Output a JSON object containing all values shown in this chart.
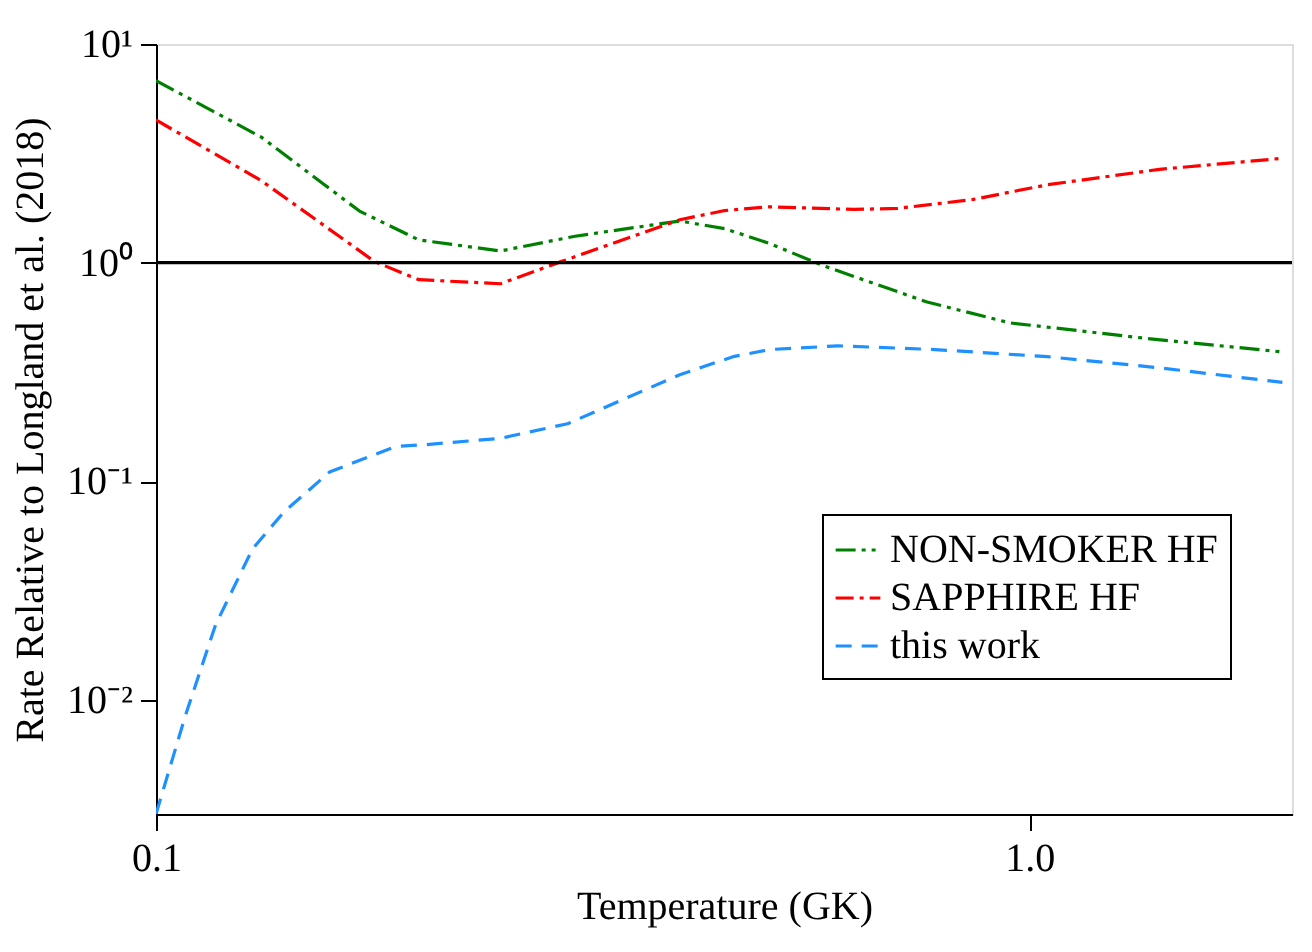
{
  "chart_data": {
    "type": "line",
    "xlabel": "Temperature (GK)",
    "ylabel": "Rate Relative to Longland et al. (2018)",
    "log": "xy",
    "xlim": [
      0.1,
      2
    ],
    "ylim": [
      0.003,
      10
    ],
    "xticks": [
      0.1,
      {
        "value": 1,
        "label": "1.0"
      }
    ],
    "yticks": [
      {
        "value": 0.01,
        "label": "10⁻²"
      },
      {
        "value": 0.1,
        "label": "10⁻¹"
      },
      {
        "value": 1,
        "label": "10⁰"
      },
      {
        "value": 10,
        "label": "10¹"
      }
    ],
    "grid": false,
    "legend": "bottom right",
    "marker": "none",
    "ref_lines": [
      {
        "axis": "y",
        "value": 1,
        "color": "#000000",
        "line_style": "solid"
      }
    ],
    "series": [
      {
        "name": "NON-SMOKER HF",
        "color": "#008000",
        "line_style": "dashdotdot",
        "x": [
          0.1,
          0.132,
          0.171,
          0.2,
          0.248,
          0.302,
          0.398,
          0.448,
          0.505,
          0.58,
          0.764,
          0.95,
          1.36,
          1.95
        ],
        "values": [
          6.8,
          3.75,
          1.72,
          1.27,
          1.13,
          1.32,
          1.55,
          1.43,
          1.22,
          0.97,
          0.66,
          0.53,
          0.45,
          0.39
        ]
      },
      {
        "name": "SAPPHIRE HF",
        "color": "#ff0000",
        "line_style": "dashdot",
        "x": [
          0.1,
          0.132,
          0.178,
          0.2,
          0.248,
          0.291,
          0.398,
          0.448,
          0.505,
          0.63,
          0.707,
          0.86,
          1.05,
          1.41,
          1.95
        ],
        "values": [
          4.49,
          2.37,
          1.01,
          0.835,
          0.8,
          1.01,
          1.57,
          1.73,
          1.8,
          1.75,
          1.77,
          1.94,
          2.27,
          2.67,
          3.0
        ]
      },
      {
        "name": "this work",
        "color": "#1e90ff",
        "line_style": "dashed",
        "x": [
          0.1,
          0.108,
          0.117,
          0.129,
          0.14,
          0.158,
          0.188,
          0.204,
          0.248,
          0.296,
          0.398,
          0.458,
          0.505,
          0.604,
          0.78,
          1.05,
          1.41,
          1.95
        ],
        "values": [
          0.003,
          0.0084,
          0.022,
          0.049,
          0.072,
          0.11,
          0.144,
          0.147,
          0.157,
          0.183,
          0.307,
          0.371,
          0.4,
          0.416,
          0.4,
          0.371,
          0.33,
          0.283
        ]
      }
    ]
  }
}
